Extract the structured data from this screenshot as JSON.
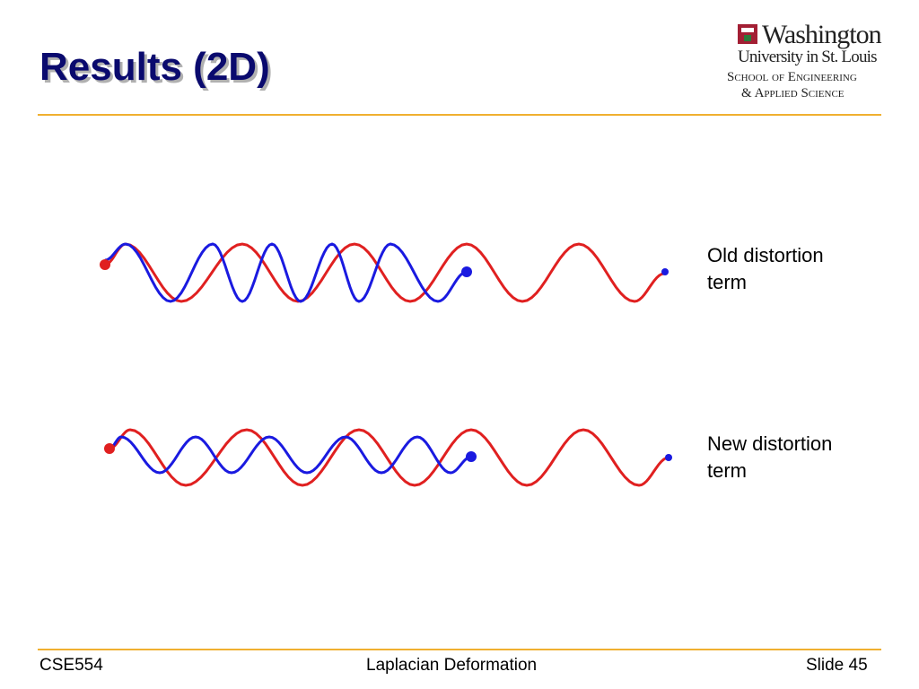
{
  "header": {
    "title": "Results (2D)",
    "logo": {
      "line1": "Washington",
      "line2": "University in St. Louis",
      "line3": "School of Engineering",
      "line4": "& Applied Science"
    }
  },
  "figures": [
    {
      "label": "Old distortion term"
    },
    {
      "label": "New distortion term"
    }
  ],
  "footer": {
    "left": "CSE554",
    "center": "Laplacian Deformation",
    "right": "Slide 45"
  }
}
